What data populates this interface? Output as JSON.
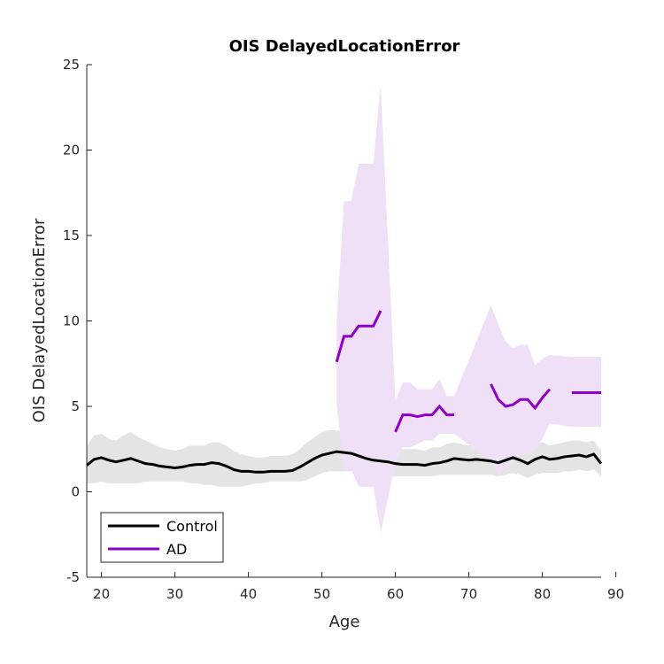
{
  "chart_data": {
    "type": "line",
    "title": "OIS DelayedLocationError",
    "xlabel": "Age",
    "ylabel": "OIS DelayedLocationError",
    "xlim": [
      18,
      88
    ],
    "ylim": [
      -5,
      25
    ],
    "xticks": [
      "20",
      "30",
      "40",
      "50",
      "60",
      "70",
      "80",
      "90"
    ],
    "yticks": [
      "-5",
      "0",
      "5",
      "10",
      "15",
      "20",
      "25"
    ],
    "legend_position": "bottom-left",
    "series": [
      {
        "name": "Control",
        "color": "#000000",
        "band_color": "#e4e4e4",
        "segments": [
          [
            [
              18,
              1.55
            ],
            [
              19,
              1.9
            ],
            [
              20,
              2.0
            ],
            [
              21,
              1.85
            ],
            [
              22,
              1.75
            ],
            [
              23,
              1.85
            ],
            [
              24,
              1.95
            ],
            [
              25,
              1.8
            ],
            [
              26,
              1.65
            ],
            [
              27,
              1.6
            ],
            [
              28,
              1.5
            ],
            [
              29,
              1.45
            ],
            [
              30,
              1.4
            ],
            [
              31,
              1.45
            ],
            [
              32,
              1.55
            ],
            [
              33,
              1.6
            ],
            [
              34,
              1.6
            ],
            [
              35,
              1.7
            ],
            [
              36,
              1.65
            ],
            [
              37,
              1.5
            ],
            [
              38,
              1.3
            ],
            [
              39,
              1.2
            ],
            [
              40,
              1.2
            ],
            [
              41,
              1.15
            ],
            [
              42,
              1.15
            ],
            [
              43,
              1.2
            ],
            [
              44,
              1.2
            ],
            [
              45,
              1.2
            ],
            [
              46,
              1.25
            ],
            [
              47,
              1.45
            ],
            [
              48,
              1.7
            ],
            [
              49,
              1.95
            ],
            [
              50,
              2.15
            ],
            [
              51,
              2.25
            ],
            [
              52,
              2.35
            ],
            [
              53,
              2.3
            ],
            [
              54,
              2.25
            ],
            [
              55,
              2.1
            ],
            [
              56,
              1.95
            ],
            [
              57,
              1.85
            ],
            [
              58,
              1.8
            ],
            [
              59,
              1.75
            ],
            [
              60,
              1.65
            ],
            [
              61,
              1.6
            ],
            [
              62,
              1.6
            ],
            [
              63,
              1.6
            ],
            [
              64,
              1.55
            ],
            [
              65,
              1.65
            ],
            [
              66,
              1.7
            ],
            [
              67,
              1.8
            ],
            [
              68,
              1.95
            ],
            [
              69,
              1.9
            ],
            [
              70,
              1.85
            ],
            [
              71,
              1.9
            ],
            [
              72,
              1.85
            ],
            [
              73,
              1.8
            ],
            [
              74,
              1.7
            ],
            [
              75,
              1.85
            ],
            [
              76,
              2.0
            ],
            [
              77,
              1.85
            ],
            [
              78,
              1.65
            ],
            [
              79,
              1.9
            ],
            [
              80,
              2.05
            ],
            [
              81,
              1.9
            ],
            [
              82,
              1.95
            ],
            [
              83,
              2.05
            ],
            [
              84,
              2.1
            ],
            [
              85,
              2.15
            ],
            [
              86,
              2.05
            ],
            [
              87,
              2.2
            ],
            [
              88,
              1.65
            ]
          ]
        ],
        "band_upper": [
          [
            18,
            2.7
          ],
          [
            19,
            3.3
          ],
          [
            20,
            3.4
          ],
          [
            21,
            3.1
          ],
          [
            22,
            3.0
          ],
          [
            23,
            3.3
          ],
          [
            24,
            3.5
          ],
          [
            25,
            3.2
          ],
          [
            26,
            3.0
          ],
          [
            27,
            2.8
          ],
          [
            28,
            2.6
          ],
          [
            29,
            2.5
          ],
          [
            30,
            2.4
          ],
          [
            31,
            2.5
          ],
          [
            32,
            2.7
          ],
          [
            33,
            2.7
          ],
          [
            34,
            2.7
          ],
          [
            35,
            2.9
          ],
          [
            36,
            2.9
          ],
          [
            37,
            2.7
          ],
          [
            38,
            2.4
          ],
          [
            39,
            2.2
          ],
          [
            40,
            2.1
          ],
          [
            41,
            2.0
          ],
          [
            42,
            2.0
          ],
          [
            43,
            2.1
          ],
          [
            44,
            2.1
          ],
          [
            45,
            2.1
          ],
          [
            46,
            2.2
          ],
          [
            47,
            2.5
          ],
          [
            48,
            2.9
          ],
          [
            49,
            3.2
          ],
          [
            50,
            3.5
          ],
          [
            51,
            3.6
          ],
          [
            52,
            3.6
          ],
          [
            53,
            3.5
          ],
          [
            54,
            3.4
          ],
          [
            55,
            3.2
          ],
          [
            56,
            3.0
          ],
          [
            57,
            2.9
          ],
          [
            58,
            2.8
          ],
          [
            59,
            2.7
          ],
          [
            60,
            2.6
          ],
          [
            61,
            2.5
          ],
          [
            62,
            2.5
          ],
          [
            63,
            2.5
          ],
          [
            64,
            2.4
          ],
          [
            65,
            2.6
          ],
          [
            66,
            2.6
          ],
          [
            67,
            2.8
          ],
          [
            68,
            2.9
          ],
          [
            69,
            2.8
          ],
          [
            70,
            2.7
          ],
          [
            71,
            2.8
          ],
          [
            72,
            2.7
          ],
          [
            73,
            2.7
          ],
          [
            74,
            2.6
          ],
          [
            75,
            2.7
          ],
          [
            76,
            2.9
          ],
          [
            77,
            2.7
          ],
          [
            78,
            2.5
          ],
          [
            79,
            2.8
          ],
          [
            80,
            2.9
          ],
          [
            81,
            2.7
          ],
          [
            82,
            2.8
          ],
          [
            83,
            2.9
          ],
          [
            84,
            3.0
          ],
          [
            85,
            3.0
          ],
          [
            86,
            2.9
          ],
          [
            87,
            3.0
          ],
          [
            88,
            2.4
          ]
        ],
        "band_lower": [
          [
            18,
            0.5
          ],
          [
            19,
            0.5
          ],
          [
            20,
            0.6
          ],
          [
            21,
            0.5
          ],
          [
            22,
            0.5
          ],
          [
            23,
            0.5
          ],
          [
            24,
            0.5
          ],
          [
            25,
            0.5
          ],
          [
            26,
            0.6
          ],
          [
            27,
            0.6
          ],
          [
            28,
            0.6
          ],
          [
            29,
            0.6
          ],
          [
            30,
            0.6
          ],
          [
            31,
            0.6
          ],
          [
            32,
            0.5
          ],
          [
            33,
            0.5
          ],
          [
            34,
            0.4
          ],
          [
            35,
            0.4
          ],
          [
            36,
            0.3
          ],
          [
            37,
            0.3
          ],
          [
            38,
            0.3
          ],
          [
            39,
            0.3
          ],
          [
            40,
            0.4
          ],
          [
            41,
            0.5
          ],
          [
            42,
            0.5
          ],
          [
            43,
            0.6
          ],
          [
            44,
            0.6
          ],
          [
            45,
            0.6
          ],
          [
            46,
            0.6
          ],
          [
            47,
            0.6
          ],
          [
            48,
            0.7
          ],
          [
            49,
            0.9
          ],
          [
            50,
            1.1
          ],
          [
            51,
            1.2
          ],
          [
            52,
            1.2
          ],
          [
            53,
            1.2
          ],
          [
            54,
            1.2
          ],
          [
            55,
            1.2
          ],
          [
            56,
            1.1
          ],
          [
            57,
            1.0
          ],
          [
            58,
            1.0
          ],
          [
            59,
            0.9
          ],
          [
            60,
            0.9
          ],
          [
            61,
            0.9
          ],
          [
            62,
            0.9
          ],
          [
            63,
            0.9
          ],
          [
            64,
            0.9
          ],
          [
            65,
            0.9
          ],
          [
            66,
            1.0
          ],
          [
            67,
            1.0
          ],
          [
            68,
            1.0
          ],
          [
            69,
            1.0
          ],
          [
            70,
            1.0
          ],
          [
            71,
            1.0
          ],
          [
            72,
            1.0
          ],
          [
            73,
            1.0
          ],
          [
            74,
            0.9
          ],
          [
            75,
            1.0
          ],
          [
            76,
            1.1
          ],
          [
            77,
            1.0
          ],
          [
            78,
            0.8
          ],
          [
            79,
            1.0
          ],
          [
            80,
            1.1
          ],
          [
            81,
            1.1
          ],
          [
            82,
            1.1
          ],
          [
            83,
            1.2
          ],
          [
            84,
            1.2
          ],
          [
            85,
            1.3
          ],
          [
            86,
            1.2
          ],
          [
            87,
            1.3
          ],
          [
            88,
            0.9
          ]
        ]
      },
      {
        "name": "AD",
        "color": "#8f00c6",
        "band_color": "#efe0f7",
        "segments": [
          [
            [
              52,
              7.6
            ],
            [
              53,
              9.1
            ],
            [
              54,
              9.1
            ],
            [
              55,
              9.7
            ],
            [
              56,
              9.7
            ],
            [
              57,
              9.7
            ],
            [
              58,
              10.6
            ]
          ],
          [
            [
              60,
              3.5
            ],
            [
              61,
              4.5
            ],
            [
              62,
              4.5
            ],
            [
              63,
              4.4
            ],
            [
              64,
              4.5
            ],
            [
              65,
              4.5
            ],
            [
              66,
              5.0
            ],
            [
              67,
              4.5
            ],
            [
              68,
              4.5
            ]
          ],
          [
            [
              73,
              6.3
            ],
            [
              74,
              5.4
            ],
            [
              75,
              5.0
            ],
            [
              76,
              5.1
            ],
            [
              77,
              5.4
            ],
            [
              78,
              5.4
            ],
            [
              79,
              4.9
            ],
            [
              80,
              5.5
            ],
            [
              81,
              6.0
            ]
          ],
          [
            [
              84,
              5.8
            ],
            [
              85,
              5.8
            ],
            [
              86,
              5.8
            ],
            [
              87,
              5.8
            ],
            [
              88,
              5.8
            ]
          ]
        ],
        "band_upper": [
          [
            52,
            10.0
          ],
          [
            53,
            17.0
          ],
          [
            54,
            17.0
          ],
          [
            55,
            19.2
          ],
          [
            56,
            19.2
          ],
          [
            57,
            19.2
          ],
          [
            58,
            23.8
          ],
          [
            60,
            5.3
          ],
          [
            61,
            6.4
          ],
          [
            62,
            6.4
          ],
          [
            63,
            6.0
          ],
          [
            64,
            6.0
          ],
          [
            65,
            6.0
          ],
          [
            66,
            6.6
          ],
          [
            67,
            5.6
          ],
          [
            68,
            5.6
          ],
          [
            73,
            10.9
          ],
          [
            74,
            9.8
          ],
          [
            75,
            8.8
          ],
          [
            76,
            8.4
          ],
          [
            77,
            8.6
          ],
          [
            78,
            8.6
          ],
          [
            79,
            7.4
          ],
          [
            80,
            7.8
          ],
          [
            81,
            8.0
          ],
          [
            84,
            7.9
          ],
          [
            85,
            7.9
          ],
          [
            86,
            7.9
          ],
          [
            87,
            7.9
          ],
          [
            88,
            7.9
          ]
        ],
        "band_lower": [
          [
            52,
            5.2
          ],
          [
            53,
            1.3
          ],
          [
            54,
            1.3
          ],
          [
            55,
            0.3
          ],
          [
            56,
            0.3
          ],
          [
            57,
            0.3
          ],
          [
            58,
            -2.4
          ],
          [
            60,
            1.7
          ],
          [
            61,
            2.6
          ],
          [
            62,
            2.6
          ],
          [
            63,
            2.8
          ],
          [
            64,
            3.0
          ],
          [
            65,
            3.0
          ],
          [
            66,
            3.4
          ],
          [
            67,
            3.4
          ],
          [
            68,
            3.4
          ],
          [
            73,
            1.8
          ],
          [
            74,
            1.0
          ],
          [
            75,
            1.3
          ],
          [
            76,
            1.8
          ],
          [
            77,
            2.2
          ],
          [
            78,
            2.2
          ],
          [
            79,
            2.4
          ],
          [
            80,
            3.1
          ],
          [
            81,
            4.0
          ],
          [
            84,
            3.8
          ],
          [
            85,
            3.8
          ],
          [
            86,
            3.8
          ],
          [
            87,
            3.8
          ],
          [
            88,
            3.8
          ]
        ]
      }
    ]
  }
}
